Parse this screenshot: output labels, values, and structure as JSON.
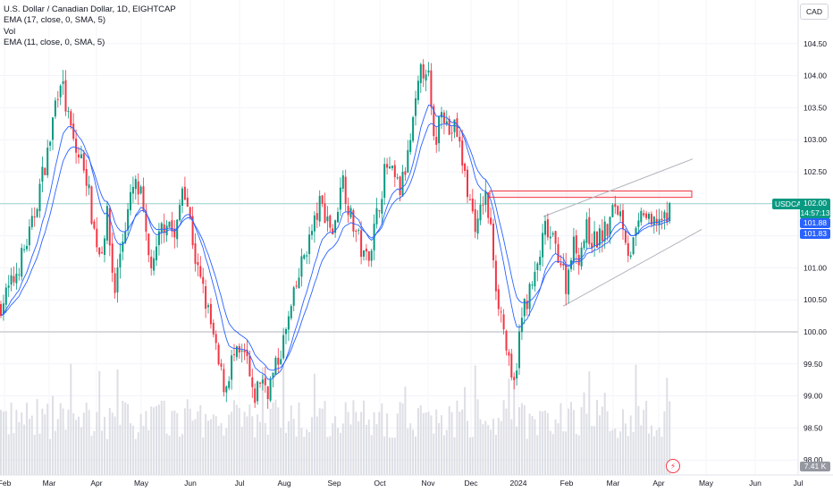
{
  "legend": {
    "symbol": "U.S. Dollar / Canadian Dollar, 1D, EIGHTCAP",
    "ema17": "EMA (17, close, 0, SMA, 5)",
    "vol": "Vol",
    "ema11": "EMA (11, close, 0, SMA, 5)"
  },
  "currency": "CAD",
  "last": {
    "symbol": "USDCAD",
    "price": "102.00",
    "countdown": "14:57:13",
    "ema17": "101.88",
    "ema11": "101.83",
    "volume": "7.41 K"
  },
  "colors": {
    "up": "#089981",
    "down": "#f23645",
    "ema": "#2962ff",
    "volume": "#d1d4dc",
    "zone": "#f23645",
    "channel": "#b2b5be"
  },
  "chart_data": {
    "type": "candlestick",
    "y_ticks": [
      98,
      98.5,
      99,
      99.5,
      100,
      100.5,
      101,
      101.5,
      102,
      102.5,
      103,
      103.5,
      104,
      104.5
    ],
    "y_tick_labels": [
      "98.00",
      "98.50",
      "99.00",
      "99.50",
      "100.00",
      "100.50",
      "101.00",
      "101.50",
      "102.00",
      "102.50",
      "103.00",
      "103.50",
      "104.00",
      "104.50"
    ],
    "x_ticks": [
      "Feb",
      "Mar",
      "Apr",
      "May",
      "Jun",
      "Jul",
      "Aug",
      "Sep",
      "Oct",
      "Nov",
      "Dec",
      "2024",
      "Feb",
      "Mar",
      "Apr",
      "May",
      "Jun",
      "Jul"
    ],
    "horizontal_line": 100.0,
    "resistance_zone": [
      102.1,
      102.2
    ],
    "channel": {
      "upper": [
        [
          101.8,
          102.7
        ]
      ],
      "lower": [
        [
          100.4,
          101.6
        ]
      ]
    },
    "price_path": [
      [
        0,
        100.4
      ],
      [
        15,
        100.8
      ],
      [
        25,
        101.2
      ],
      [
        35,
        101.6
      ],
      [
        45,
        102.3
      ],
      [
        55,
        102.9
      ],
      [
        62,
        103.6
      ],
      [
        68,
        104.0
      ],
      [
        75,
        103.4
      ],
      [
        85,
        102.8
      ],
      [
        95,
        102.6
      ],
      [
        105,
        101.6
      ],
      [
        112,
        101.2
      ],
      [
        120,
        101.8
      ],
      [
        128,
        100.6
      ],
      [
        135,
        101.3
      ],
      [
        142,
        101.8
      ],
      [
        150,
        102.3
      ],
      [
        158,
        102.1
      ],
      [
        165,
        101.2
      ],
      [
        172,
        101.0
      ],
      [
        180,
        101.6
      ],
      [
        188,
        101.8
      ],
      [
        196,
        101.4
      ],
      [
        205,
        102.4
      ],
      [
        212,
        101.8
      ],
      [
        220,
        101.0
      ],
      [
        228,
        100.6
      ],
      [
        236,
        100.1
      ],
      [
        244,
        99.5
      ],
      [
        252,
        99.1
      ],
      [
        260,
        99.6
      ],
      [
        268,
        99.6
      ],
      [
        276,
        99.6
      ],
      [
        283,
        98.9
      ],
      [
        292,
        99.3
      ],
      [
        300,
        99.1
      ],
      [
        310,
        99.5
      ],
      [
        320,
        100.0
      ],
      [
        330,
        100.6
      ],
      [
        340,
        101.2
      ],
      [
        350,
        101.6
      ],
      [
        358,
        102.0
      ],
      [
        366,
        101.8
      ],
      [
        374,
        101.5
      ],
      [
        382,
        102.5
      ],
      [
        392,
        101.8
      ],
      [
        400,
        101.5
      ],
      [
        408,
        101.1
      ],
      [
        416,
        101.4
      ],
      [
        424,
        102.0
      ],
      [
        432,
        102.6
      ],
      [
        440,
        102.4
      ],
      [
        448,
        102.2
      ],
      [
        456,
        102.7
      ],
      [
        464,
        103.4
      ],
      [
        470,
        104.0
      ],
      [
        478,
        104.2
      ],
      [
        486,
        102.8
      ],
      [
        494,
        103.6
      ],
      [
        502,
        103.1
      ],
      [
        510,
        103.2
      ],
      [
        518,
        102.6
      ],
      [
        526,
        102.0
      ],
      [
        534,
        101.6
      ],
      [
        542,
        102.2
      ],
      [
        550,
        101.5
      ],
      [
        556,
        100.6
      ],
      [
        562,
        100.2
      ],
      [
        568,
        99.6
      ],
      [
        574,
        99.0
      ],
      [
        580,
        99.8
      ],
      [
        586,
        100.4
      ],
      [
        592,
        100.6
      ],
      [
        598,
        100.8
      ],
      [
        604,
        101.2
      ],
      [
        610,
        101.6
      ],
      [
        618,
        101.4
      ],
      [
        626,
        101.2
      ],
      [
        634,
        100.7
      ],
      [
        640,
        101.4
      ],
      [
        648,
        101.2
      ],
      [
        656,
        101.6
      ],
      [
        664,
        101.4
      ],
      [
        672,
        101.5
      ],
      [
        680,
        101.6
      ],
      [
        688,
        102.0
      ],
      [
        696,
        101.8
      ],
      [
        704,
        101.2
      ],
      [
        712,
        101.5
      ],
      [
        720,
        101.9
      ],
      [
        728,
        101.6
      ],
      [
        736,
        101.8
      ],
      [
        744,
        101.7
      ],
      [
        752,
        102.0
      ]
    ]
  }
}
